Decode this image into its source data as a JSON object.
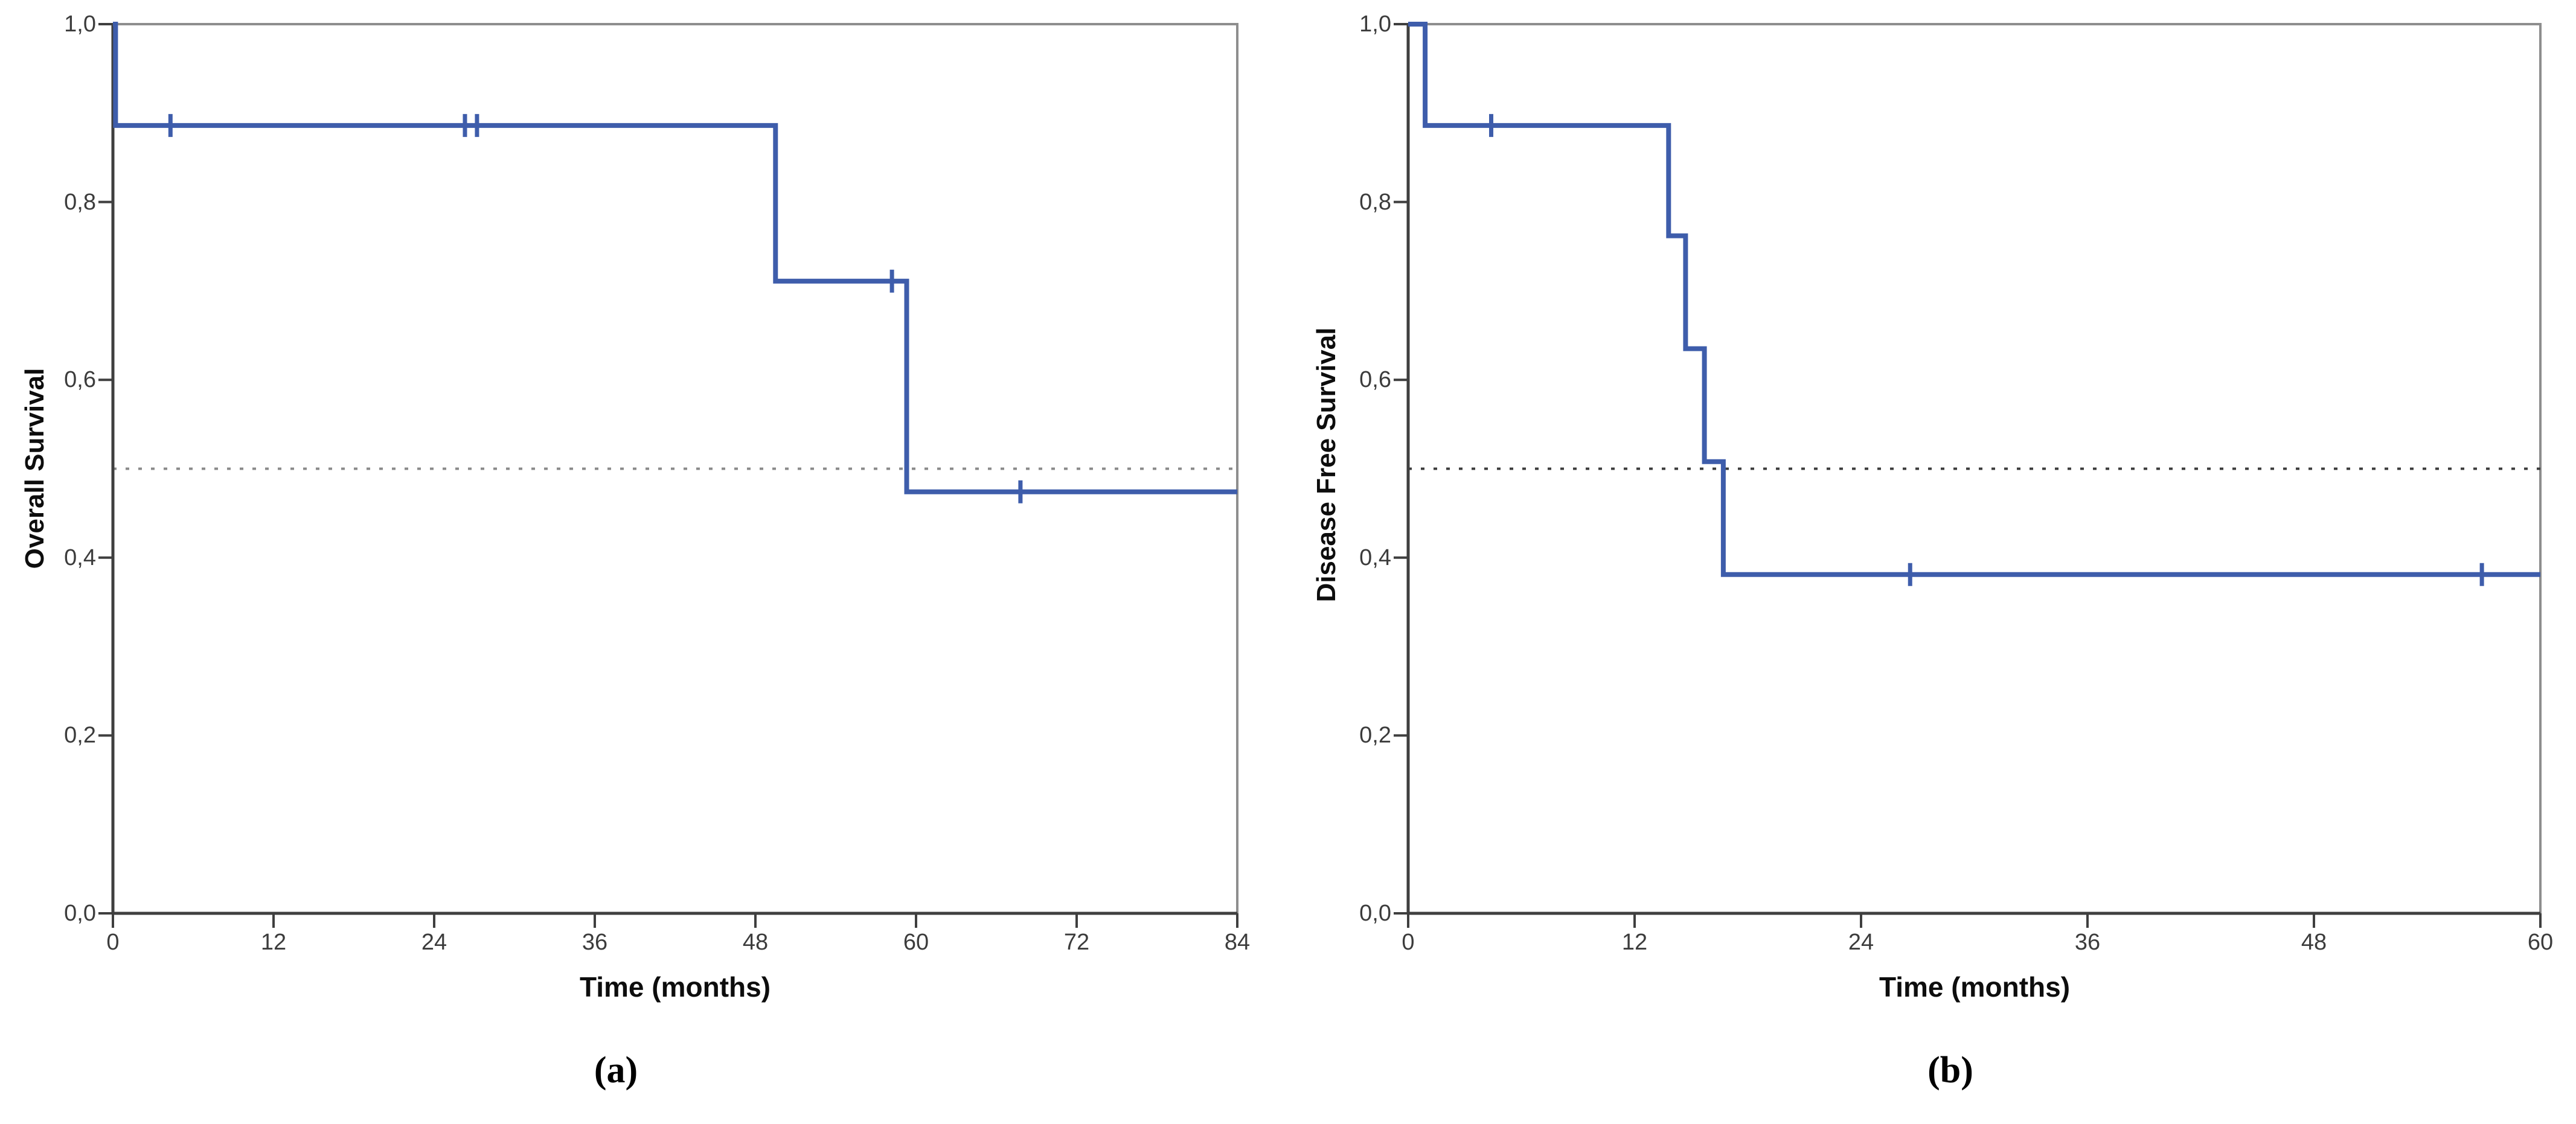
{
  "styles": {
    "background": "#FFFFFF",
    "curve_color": "#3E5DAB",
    "frame_color": "#8E8E8E",
    "axis_color": "#3F3F3F",
    "tick_label_color": "#3C3C3C",
    "title_color": "#0D0D0D"
  },
  "chart_data": [
    {
      "type": "line",
      "variant": "kaplan-meier-step",
      "panel": "a",
      "caption": "(a)",
      "ylabel": "Overall Survival",
      "xlabel": "Time (months)",
      "xlim": [
        0,
        84
      ],
      "ylim": [
        0.0,
        1.0
      ],
      "grid": false,
      "legend": "none",
      "x_ticks": [
        {
          "value": 0,
          "label": "0"
        },
        {
          "value": 12,
          "label": "12"
        },
        {
          "value": 24,
          "label": "24"
        },
        {
          "value": 36,
          "label": "36"
        },
        {
          "value": 48,
          "label": "48"
        },
        {
          "value": 60,
          "label": "60"
        },
        {
          "value": 72,
          "label": "72"
        },
        {
          "value": 84,
          "label": "84"
        }
      ],
      "y_ticks": [
        {
          "value": 1.0,
          "label": "1,0"
        },
        {
          "value": 0.8,
          "label": "0,8"
        },
        {
          "value": 0.6,
          "label": "0,6"
        },
        {
          "value": 0.4,
          "label": "0,4"
        },
        {
          "value": 0.2,
          "label": "0,2"
        },
        {
          "value": 0.0,
          "label": "0,0"
        }
      ],
      "reference_line": {
        "y": 0.5,
        "style": "dashed",
        "color": "#8A8A8A"
      },
      "series": [
        {
          "name": "Overall Survival",
          "color": "#3E5DAB",
          "steps": [
            [
              0,
              1.0
            ],
            [
              0.2,
              1.0
            ],
            [
              0.2,
              0.886
            ],
            [
              49.5,
              0.886
            ],
            [
              49.5,
              0.711
            ],
            [
              59.3,
              0.711
            ],
            [
              59.3,
              0.474
            ],
            [
              84,
              0.474
            ]
          ],
          "censored": [
            [
              4.3,
              0.886
            ],
            [
              26.3,
              0.886
            ],
            [
              27.2,
              0.886
            ],
            [
              58.2,
              0.711
            ],
            [
              67.8,
              0.474
            ]
          ]
        }
      ]
    },
    {
      "type": "line",
      "variant": "kaplan-meier-step",
      "panel": "b",
      "caption": "(b)",
      "ylabel": "Disease Free Survival",
      "xlabel": "Time (months)",
      "xlim": [
        0,
        60
      ],
      "ylim": [
        0.0,
        1.0
      ],
      "grid": false,
      "legend": "none",
      "x_ticks": [
        {
          "value": 0,
          "label": "0"
        },
        {
          "value": 12,
          "label": "12"
        },
        {
          "value": 24,
          "label": "24"
        },
        {
          "value": 36,
          "label": "36"
        },
        {
          "value": 48,
          "label": "48"
        },
        {
          "value": 60,
          "label": "60"
        }
      ],
      "y_ticks": [
        {
          "value": 1.0,
          "label": "1,0"
        },
        {
          "value": 0.8,
          "label": "0,8"
        },
        {
          "value": 0.6,
          "label": "0,6"
        },
        {
          "value": 0.4,
          "label": "0,4"
        },
        {
          "value": 0.2,
          "label": "0,2"
        },
        {
          "value": 0.0,
          "label": "0,0"
        }
      ],
      "reference_line": {
        "y": 0.5,
        "style": "dashed",
        "color": "#3B3B3B"
      },
      "series": [
        {
          "name": "Disease Free Survival",
          "color": "#3E5DAB",
          "steps": [
            [
              0,
              1.0
            ],
            [
              0.9,
              1.0
            ],
            [
              0.9,
              0.886
            ],
            [
              13.8,
              0.886
            ],
            [
              13.8,
              0.762
            ],
            [
              14.7,
              0.762
            ],
            [
              14.7,
              0.635
            ],
            [
              15.7,
              0.635
            ],
            [
              15.7,
              0.508
            ],
            [
              16.7,
              0.508
            ],
            [
              16.7,
              0.381
            ],
            [
              60,
              0.381
            ]
          ],
          "censored": [
            [
              4.4,
              0.886
            ],
            [
              26.6,
              0.381
            ],
            [
              56.9,
              0.381
            ]
          ]
        }
      ]
    }
  ]
}
